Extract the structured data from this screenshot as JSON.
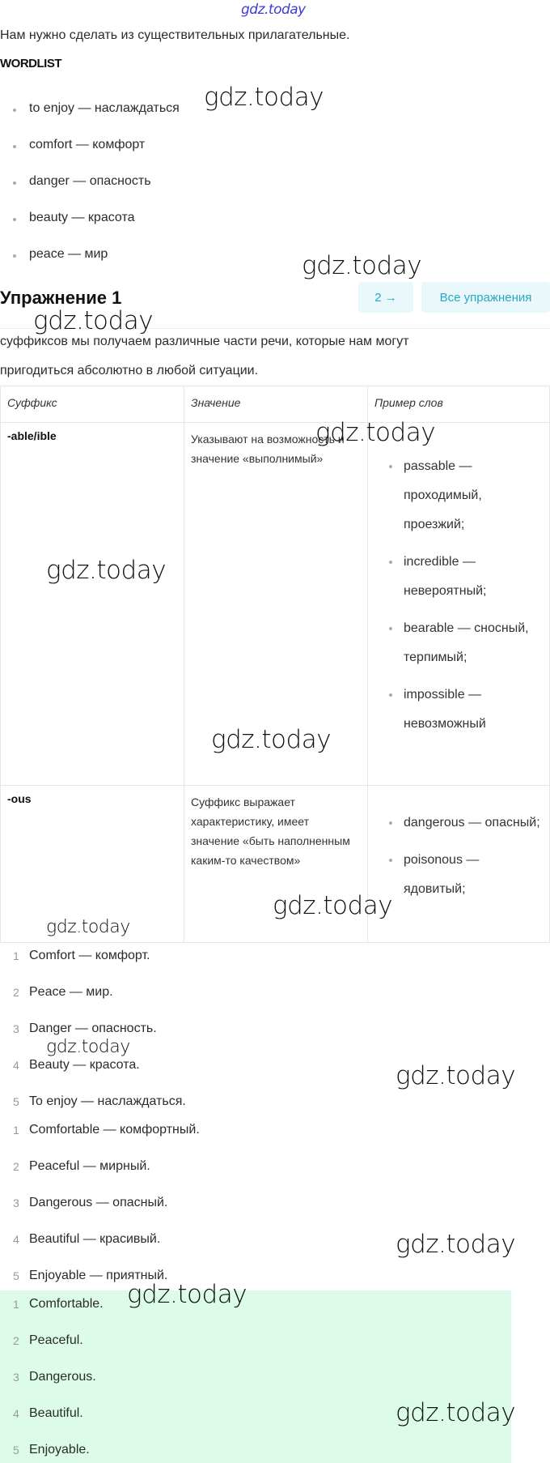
{
  "watermark": "gdz.today",
  "intro": "Нам нужно сделать из существительных прилагательные.",
  "wordlist": {
    "title": "WORDLIST",
    "items": [
      "to enjoy — наслаждаться",
      "comfort — комфорт",
      "danger — опасность",
      "beauty — красота",
      "peace — мир"
    ]
  },
  "exercise": {
    "title": "Упражнение 1",
    "next_label": "2 →",
    "all_label": "Все упражнения",
    "text_line1": "суффиксов мы получаем различные части речи, которые нам могут",
    "text_line2": "пригодиться абсолютно в любой ситуации."
  },
  "table": {
    "headers": [
      "Суффикс",
      "Значение",
      "Пример слов"
    ],
    "rows": [
      {
        "suffix": "-able/ible",
        "meaning": "Указывают на возможность и значение «выполнимый»",
        "examples": [
          "passable — проходимый, проезжий;",
          "incredible — невероятный;",
          "bearable — сносный, терпимый;",
          "impossible — невозможный"
        ]
      },
      {
        "suffix": "-ous",
        "meaning": "Суффикс выражает характеристику, имеет значение «быть наполненным каким-то качеством»",
        "examples": [
          "dangerous — опасный;",
          "poisonous — ядовитый;"
        ]
      }
    ]
  },
  "list1": [
    "Comfort — комфорт.",
    "Peace — мир.",
    "Danger — опасность.",
    "Beauty — красота.",
    "To enjoy — наслаждаться."
  ],
  "list2": [
    "Comfortable — комфортный.",
    "Peaceful — мирный.",
    "Dangerous — опасный.",
    "Beautiful — красивый.",
    "Enjoyable — приятный."
  ],
  "answers": [
    "Comfortable.",
    "Peaceful.",
    "Dangerous.",
    "Beautiful.",
    "Enjoyable."
  ],
  "numbers": [
    "1",
    "2",
    "3",
    "4",
    "5"
  ],
  "colors": {
    "accent": "#2aa8c4",
    "button_bg": "#e8f8fb",
    "answer_bg": "#dcfce9"
  }
}
